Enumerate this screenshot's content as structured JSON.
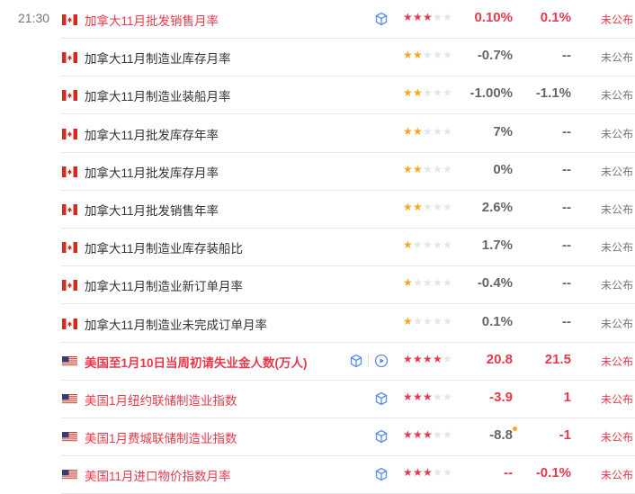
{
  "time": "21:30",
  "colors": {
    "red": "#e8394a",
    "orange": "#f5a623",
    "gray_star": "#e5e5e5",
    "icon_blue": "#5b8def"
  },
  "rows": [
    {
      "country": "CA",
      "name": "加拿大11月批发销售月率",
      "stars": 3,
      "actual": "0.10%",
      "forecast": "0.1%",
      "status": "未公布",
      "highlight": true,
      "icons": [
        "cube-icon"
      ]
    },
    {
      "country": "CA",
      "name": "加拿大11月制造业库存月率",
      "stars": 2,
      "actual": "-0.7%",
      "forecast": "--",
      "status": "未公布",
      "highlight": false,
      "icons": []
    },
    {
      "country": "CA",
      "name": "加拿大11月制造业装船月率",
      "stars": 2,
      "actual": "-1.00%",
      "forecast": "-1.1%",
      "status": "未公布",
      "highlight": false,
      "icons": []
    },
    {
      "country": "CA",
      "name": "加拿大11月批发库存年率",
      "stars": 2,
      "actual": "7%",
      "forecast": "--",
      "status": "未公布",
      "highlight": false,
      "icons": []
    },
    {
      "country": "CA",
      "name": "加拿大11月批发库存月率",
      "stars": 2,
      "actual": "0%",
      "forecast": "--",
      "status": "未公布",
      "highlight": false,
      "icons": []
    },
    {
      "country": "CA",
      "name": "加拿大11月批发销售年率",
      "stars": 2,
      "actual": "2.6%",
      "forecast": "--",
      "status": "未公布",
      "highlight": false,
      "icons": []
    },
    {
      "country": "CA",
      "name": "加拿大11月制造业库存装船比",
      "stars": 1,
      "actual": "1.7%",
      "forecast": "--",
      "status": "未公布",
      "highlight": false,
      "icons": []
    },
    {
      "country": "CA",
      "name": "加拿大11月制造业新订单月率",
      "stars": 1,
      "actual": "-0.4%",
      "forecast": "--",
      "status": "未公布",
      "highlight": false,
      "icons": []
    },
    {
      "country": "CA",
      "name": "加拿大11月制造业未完成订单月率",
      "stars": 1,
      "actual": "0.1%",
      "forecast": "--",
      "status": "未公布",
      "highlight": false,
      "icons": []
    },
    {
      "country": "US",
      "name": "美国至1月10日当周初请失业金人数(万人)",
      "stars": 4,
      "actual": "20.8",
      "forecast": "21.5",
      "status": "未公布",
      "highlight": true,
      "bold": true,
      "icons": [
        "cube-icon",
        "play-icon"
      ]
    },
    {
      "country": "US",
      "name": "美国1月纽约联储制造业指数",
      "stars": 3,
      "actual": "-3.9",
      "forecast": "1",
      "status": "未公布",
      "highlight": true,
      "icons": [
        "cube-icon"
      ]
    },
    {
      "country": "US",
      "name": "美国1月费城联储制造业指数",
      "stars": 3,
      "actual": "-8.8",
      "forecast": "-1",
      "status": "未公布",
      "highlight": true,
      "actual_gray": true,
      "actual_dot": true,
      "icons": [
        "cube-icon"
      ]
    },
    {
      "country": "US",
      "name": "美国11月进口物价指数月率",
      "stars": 3,
      "actual": "--",
      "forecast": "-0.1%",
      "status": "未公布",
      "highlight": true,
      "icons": [
        "cube-icon"
      ]
    }
  ]
}
